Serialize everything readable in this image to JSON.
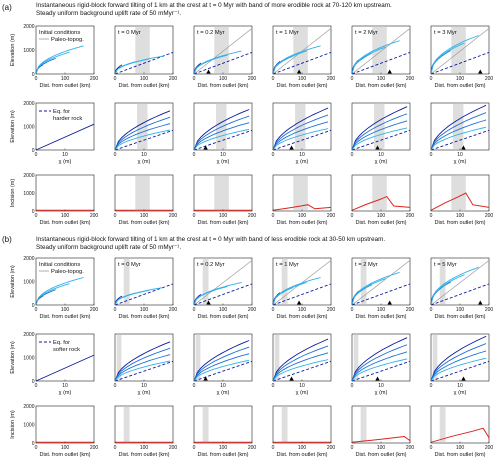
{
  "blocks": [
    {
      "letter": "(a)",
      "caption_line1": "Instantaneous rigid-block forward tilting of 1 km at the crest at t = 0 Myr with band of more erodible rock at 70-120 km upstream.",
      "caption_line2": "Steady uniform background uplift rate of 50 mMyr⁻¹.",
      "legend_top": [
        "Initial conditions",
        "Paleo-topog."
      ],
      "legend_mid": [
        "Eq. for",
        "harder rock"
      ],
      "times": [
        "t = 0 Myr",
        "t = 0.2 Myr",
        "t = 1 Myr",
        "t = 2 Myr",
        "t = 3 Myr"
      ],
      "band_km": [
        70,
        120
      ]
    },
    {
      "letter": "(b)",
      "caption_line1": "Instantaneous rigid-block forward tilting of 1 km at the crest at t = 0 Myr with band of less erodible rock at 30-50 km upstream.",
      "caption_line2": "Steady uniform background uplift rate of 50 mMyr⁻¹.",
      "legend_top": [
        "Initial conditions",
        "Paleo-topog."
      ],
      "legend_mid": [
        "Eq. for",
        "softer rock"
      ],
      "times": [
        "t = 0 Myr",
        "t = 0.2 Myr",
        "t = 1 Myr",
        "t = 2 Myr",
        "t = 5 Myr"
      ],
      "band_km": [
        30,
        50
      ]
    }
  ],
  "axes": {
    "elev_ylabel": "Elevation (m)",
    "elev_xlabel": "Dist. from outlet (km)",
    "elev_yticks": [
      "0",
      "1000",
      "2000"
    ],
    "elev_xticks": [
      "0",
      "100",
      "200"
    ],
    "chi_ylabel": "Elevation (m)",
    "chi_xlabel": "χ (m)",
    "chi_yticks": [
      "0",
      "1000",
      "2000"
    ],
    "chi_xticks": [
      "0",
      "10"
    ],
    "inc_ylabel": "Incision (m)",
    "inc_xlabel": "Dist. from outlet (km)",
    "inc_yticks": [
      "0",
      "1000",
      "2000"
    ],
    "inc_xticks": [
      "0",
      "100",
      "200"
    ]
  },
  "colors": {
    "dark_blue": "#0d1a9e",
    "mid_blue": "#1c6fd6",
    "light_blue": "#2fb2e8",
    "paleo_gray": "#9a9a9a",
    "incision_red": "#e0221c",
    "band_gray": "#dedede"
  },
  "chart_data": [
    {
      "type": "line",
      "panel": "a-elevation-vs-distance",
      "x_range_km": [
        0,
        200
      ],
      "y_range_m": [
        0,
        2000
      ],
      "incision_peak_m": [
        0,
        0,
        350,
        800,
        1000
      ]
    },
    {
      "type": "line",
      "panel": "b-elevation-vs-distance",
      "x_range_km": [
        0,
        200
      ],
      "y_range_m": [
        0,
        2000
      ],
      "incision_peak_m": [
        0,
        0,
        0,
        350,
        800
      ]
    }
  ]
}
